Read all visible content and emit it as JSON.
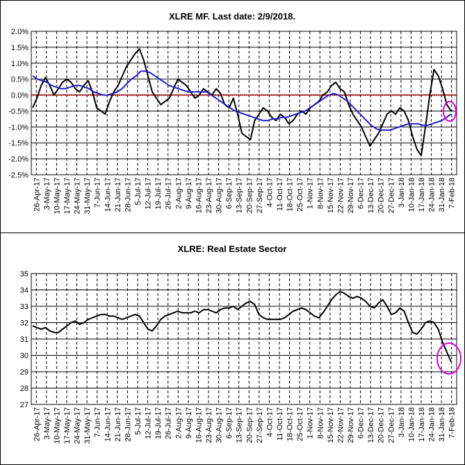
{
  "colors": {
    "price": "#000000",
    "ma": "#1f1fcc",
    "zero": "#c00000",
    "highlight": "#e000e0",
    "grid": "#000000"
  },
  "chart_data": [
    {
      "type": "line",
      "title": "XLRE MF. Last date: 2/9/2018.",
      "ylim": [
        -2.5,
        2.0
      ],
      "yticks": [
        2.0,
        1.5,
        1.0,
        0.5,
        0.0,
        -0.5,
        -1.0,
        -1.5,
        -2.0,
        -2.5
      ],
      "ytick_labels": [
        "2.0%",
        "1.5%",
        "1.0%",
        "0.5%",
        "0.0%",
        "-0.5%",
        "-1.0%",
        "-1.5%",
        "-2.0%",
        "-2.5%"
      ],
      "x_tick_labels": [
        "26-Apr-17",
        "3-May-17",
        "10-May-17",
        "17-May-17",
        "24-May-17",
        "31-May-17",
        "7-Jun-17",
        "14-Jun-17",
        "21-Jun-17",
        "28-Jun-17",
        "5-Jul-17",
        "12-Jul-17",
        "19-Jul-17",
        "26-Jul-17",
        "2-Aug-17",
        "9-Aug-17",
        "16-Aug-17",
        "23-Aug-17",
        "30-Aug-17",
        "6-Sep-17",
        "13-Sep-17",
        "20-Sep-17",
        "27-Sep-17",
        "4-Oct-17",
        "11-Oct-17",
        "18-Oct-17",
        "25-Oct-17",
        "1-Nov-17",
        "8-Nov-17",
        "15-Nov-17",
        "22-Nov-17",
        "29-Nov-17",
        "6-Dec-17",
        "13-Dec-17",
        "20-Dec-17",
        "27-Dec-17",
        "3-Jan-18",
        "10-Jan-18",
        "17-Jan-18",
        "24-Jan-18",
        "31-Jan-18",
        "7-Feb-18"
      ],
      "grid": true,
      "series": [
        {
          "values": [
            -0.4,
            -0.1,
            0.3,
            0.55,
            0.3,
            0.0,
            0.2,
            0.4,
            0.5,
            0.4,
            0.2,
            0.1,
            0.3,
            0.45,
            0.1,
            -0.4,
            -0.5,
            -0.6,
            -0.2,
            0.1,
            0.3,
            0.6,
            0.9,
            1.1,
            1.3,
            1.45,
            1.1,
            0.6,
            0.1,
            -0.1,
            -0.3,
            -0.2,
            -0.1,
            0.2,
            0.5,
            0.4,
            0.3,
            0.1,
            -0.1,
            0.0,
            0.2,
            0.1,
            0.0,
            0.2,
            0.05,
            -0.3,
            -0.4,
            -0.1,
            -0.6,
            -1.2,
            -1.3,
            -1.4,
            -0.8,
            -0.6,
            -0.4,
            -0.5,
            -0.7,
            -0.8,
            -0.6,
            -0.7,
            -0.9,
            -0.8,
            -0.6,
            -0.5,
            -0.6,
            -0.4,
            -0.3,
            -0.2,
            0.0,
            0.1,
            0.3,
            0.4,
            0.2,
            0.1,
            -0.3,
            -0.6,
            -0.8,
            -1.0,
            -1.3,
            -1.6,
            -1.4,
            -1.2,
            -0.9,
            -0.6,
            -0.5,
            -0.6,
            -0.4,
            -0.5,
            -0.8,
            -1.3,
            -1.7,
            -1.9,
            -1.0,
            0.0,
            0.8,
            0.6,
            0.2,
            -0.3,
            -0.5
          ]
        },
        {
          "values": [
            0.6,
            0.5,
            0.45,
            0.4,
            0.3,
            0.25,
            0.2,
            0.2,
            0.25,
            0.3,
            0.3,
            0.25,
            0.2,
            0.1,
            0.05,
            0.0,
            0.0,
            0.05,
            0.1,
            0.2,
            0.35,
            0.5,
            0.6,
            0.75,
            0.75,
            0.7,
            0.6,
            0.5,
            0.4,
            0.3,
            0.25,
            0.2,
            0.15,
            0.1,
            0.1,
            0.1,
            0.1,
            0.1,
            0.0,
            -0.1,
            -0.2,
            -0.3,
            -0.4,
            -0.5,
            -0.55,
            -0.6,
            -0.65,
            -0.7,
            -0.75,
            -0.8,
            -0.8,
            -0.75,
            -0.75,
            -0.7,
            -0.7,
            -0.65,
            -0.6,
            -0.55,
            -0.5,
            -0.4,
            -0.3,
            -0.2,
            -0.1,
            0.0,
            0.05,
            0.0,
            -0.1,
            -0.2,
            -0.35,
            -0.5,
            -0.65,
            -0.8,
            -0.95,
            -1.05,
            -1.1,
            -1.1,
            -1.1,
            -1.05,
            -1.0,
            -0.95,
            -0.9,
            -0.9,
            -0.9,
            -0.95,
            -0.95,
            -0.9,
            -0.85,
            -0.8,
            -0.7,
            -0.6
          ]
        }
      ],
      "zero_line": 0.0
    },
    {
      "type": "line",
      "title": "XLRE: Real Estate Sector",
      "ylim": [
        27,
        35
      ],
      "yticks": [
        35,
        34,
        33,
        32,
        31,
        30,
        29,
        28,
        27
      ],
      "ytick_labels": [
        "35",
        "34",
        "33",
        "32",
        "31",
        "30",
        "29",
        "28",
        "27"
      ],
      "x_tick_labels": [
        "26-Apr-17",
        "3-May-17",
        "10-May-17",
        "17-May-17",
        "24-May-17",
        "31-May-17",
        "7-Jun-17",
        "14-Jun-17",
        "21-Jun-17",
        "28-Jun-17",
        "5-Jul-17",
        "12-Jul-17",
        "19-Jul-17",
        "26-Jul-17",
        "2-Aug-17",
        "9-Aug-17",
        "16-Aug-17",
        "23-Aug-17",
        "30-Aug-17",
        "6-Sep-17",
        "13-Sep-17",
        "20-Sep-17",
        "27-Sep-17",
        "4-Oct-17",
        "11-Oct-17",
        "18-Oct-17",
        "25-Oct-17",
        "1-Nov-17",
        "8-Nov-17",
        "15-Nov-17",
        "22-Nov-17",
        "29-Nov-17",
        "6-Dec-17",
        "13-Dec-17",
        "20-Dec-17",
        "27-Dec-17",
        "3-Jan-18",
        "10-Jan-18",
        "17-Jan-18",
        "24-Jan-18",
        "31-Jan-18",
        "7-Feb-18"
      ],
      "grid": true,
      "series": [
        {
          "values": [
            31.8,
            31.7,
            31.6,
            31.7,
            31.5,
            31.4,
            31.4,
            31.6,
            31.8,
            32.0,
            32.1,
            31.9,
            32.0,
            32.2,
            32.3,
            32.4,
            32.5,
            32.5,
            32.4,
            32.4,
            32.3,
            32.2,
            32.3,
            32.4,
            32.5,
            32.4,
            32.0,
            31.6,
            31.5,
            31.8,
            32.2,
            32.4,
            32.5,
            32.6,
            32.7,
            32.6,
            32.6,
            32.6,
            32.7,
            32.6,
            32.8,
            32.8,
            32.7,
            32.6,
            32.8,
            32.9,
            32.9,
            33.0,
            32.8,
            33.0,
            33.2,
            33.3,
            33.1,
            32.5,
            32.3,
            32.2,
            32.2,
            32.2,
            32.2,
            32.3,
            32.5,
            32.7,
            32.8,
            32.9,
            32.8,
            32.6,
            32.4,
            32.3,
            32.6,
            33.0,
            33.4,
            33.7,
            33.9,
            33.8,
            33.6,
            33.5,
            33.6,
            33.5,
            33.3,
            33.0,
            32.9,
            33.2,
            33.4,
            33.0,
            32.5,
            32.6,
            32.9,
            32.7,
            32.0,
            31.4,
            31.3,
            31.6,
            32.0,
            32.1,
            32.0,
            31.6,
            30.8,
            30.2,
            29.6
          ]
        }
      ]
    }
  ]
}
